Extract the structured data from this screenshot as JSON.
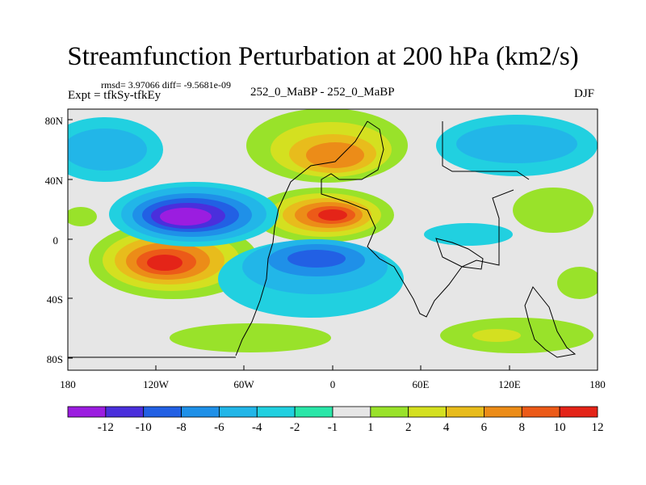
{
  "title": "Streamfunction Perturbation at 200 hPa (km2/s)",
  "stats": "rmsd= 3.97066 diff= -9.5681e-09",
  "expt": "Expt = tfkSy-tfkEy",
  "subtitle": "252_0_MaBP - 252_0_MaBP",
  "season": "DJF",
  "axes": {
    "lat_labels": [
      "80N",
      "40N",
      "0",
      "40S",
      "80S"
    ],
    "lon_labels": [
      "180",
      "120W",
      "60W",
      "0",
      "60E",
      "120E",
      "180"
    ]
  },
  "colorbar": {
    "labels": [
      "-12",
      "-10",
      "-8",
      "-6",
      "-4",
      "-2",
      "-1",
      "1",
      "2",
      "4",
      "6",
      "8",
      "10",
      "12"
    ],
    "colors": [
      "#9b1de0",
      "#4a2fdc",
      "#2260e4",
      "#1f90e8",
      "#22b6e8",
      "#21d0e0",
      "#2ae6a8",
      "#e6e6e6",
      "#99e22a",
      "#d4e020",
      "#e8bc1c",
      "#ec8c18",
      "#ec5a18",
      "#e42418"
    ]
  },
  "palette": {
    "background": "#e6e6e6",
    "coast": "#000000"
  }
}
